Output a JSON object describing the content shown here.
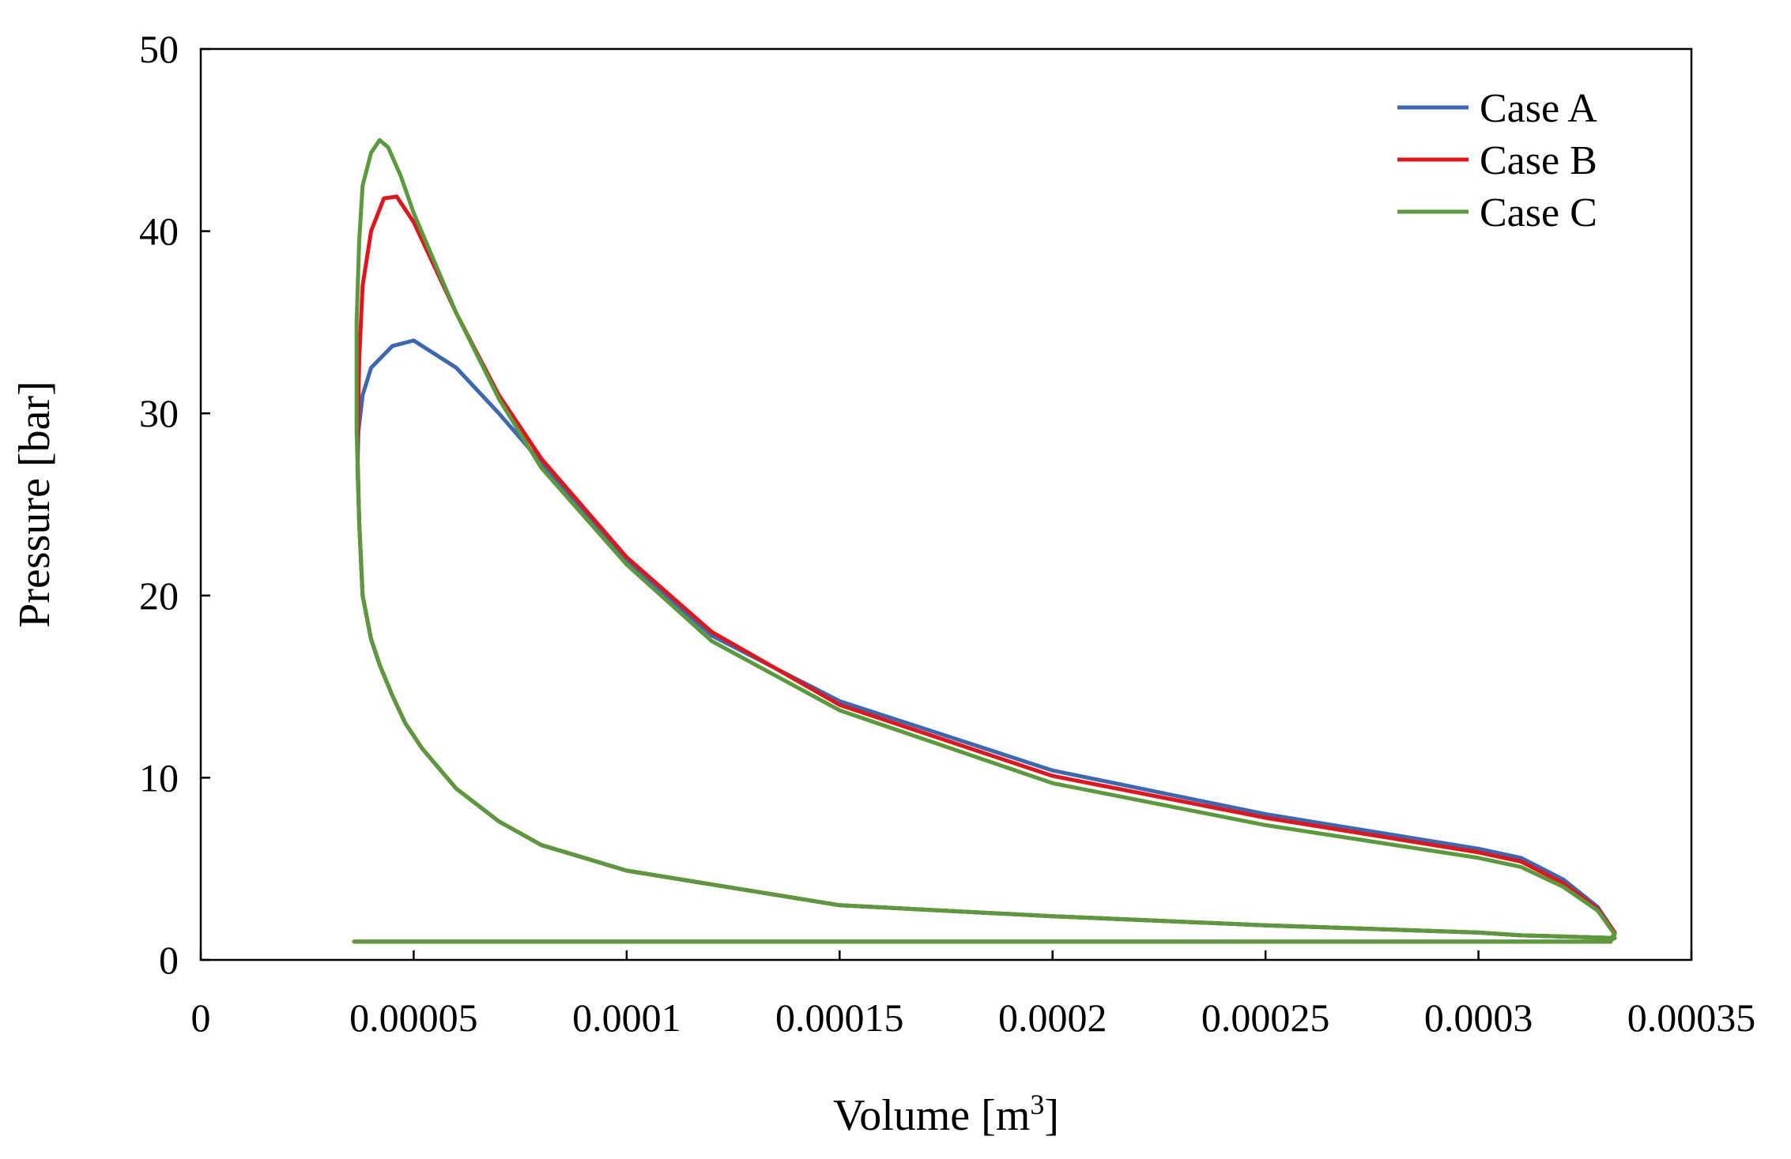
{
  "chart_data": {
    "type": "line",
    "title": "",
    "xlabel": "Volume [m",
    "xlabel_superscript": "3",
    "xlabel_suffix": "]",
    "ylabel": "Pressure [bar]",
    "xlim": [
      0,
      0.00035
    ],
    "ylim": [
      0,
      50
    ],
    "xticks": [
      0,
      5e-05,
      0.0001,
      0.00015,
      0.0002,
      0.00025,
      0.0003,
      0.00035
    ],
    "xtick_labels": [
      "0",
      "0.00005",
      "0.0001",
      "0.00015",
      "0.0002",
      "0.00025",
      "0.0003",
      "0.00035"
    ],
    "yticks": [
      0,
      10,
      20,
      30,
      40,
      50
    ],
    "ytick_labels": [
      "0",
      "10",
      "20",
      "30",
      "40",
      "50"
    ],
    "grid": false,
    "legend_position": "top-right",
    "series": [
      {
        "name": "Case A",
        "color": "#3e67b1",
        "x": [
          3.62e-05,
          6e-05,
          0.0001,
          0.00015,
          0.0002,
          0.00025,
          0.0003,
          0.00033,
          0.000332,
          0.00031,
          0.0003,
          0.00025,
          0.0002,
          0.00015,
          0.0001,
          8e-05,
          7e-05,
          6e-05,
          5.2e-05,
          4.8e-05,
          4.5e-05,
          4.2e-05,
          4e-05,
          3.8e-05,
          3.72e-05,
          3.68e-05,
          3.7e-05,
          3.8e-05,
          4e-05,
          4.5e-05,
          5e-05,
          6e-05,
          7e-05,
          8e-05,
          0.0001,
          0.00012,
          0.00015,
          0.0002,
          0.00025,
          0.0003,
          0.00031,
          0.00032,
          0.000328,
          0.000332,
          0.000331,
          0.0003,
          0.00025,
          0.0002,
          0.00015,
          0.0001,
          5e-05,
          3.6e-05
        ],
        "y": [
          1.0,
          1.0,
          1.0,
          1.0,
          1.0,
          1.0,
          1.0,
          1.0,
          1.2,
          1.35,
          1.5,
          1.9,
          2.4,
          3.0,
          4.9,
          6.3,
          7.6,
          9.4,
          11.6,
          13.0,
          14.5,
          16.2,
          17.6,
          20.0,
          24.0,
          27.0,
          29.0,
          31.0,
          32.5,
          33.7,
          34.0,
          32.5,
          30.0,
          27.3,
          21.9,
          17.8,
          14.2,
          10.4,
          8.0,
          6.1,
          5.6,
          4.4,
          2.9,
          1.5,
          1.0,
          1.0,
          1.0,
          1.0,
          1.0,
          1.0,
          1.0,
          1.0
        ]
      },
      {
        "name": "Case B",
        "color": "#e0161c",
        "x": [
          3.62e-05,
          6e-05,
          0.0001,
          0.00015,
          0.0002,
          0.00025,
          0.0003,
          0.00033,
          0.000332,
          0.00031,
          0.0003,
          0.00025,
          0.0002,
          0.00015,
          0.0001,
          8e-05,
          7e-05,
          6e-05,
          5.2e-05,
          4.8e-05,
          4.5e-05,
          4.2e-05,
          4e-05,
          3.8e-05,
          3.72e-05,
          3.68e-05,
          3.72e-05,
          3.8e-05,
          4e-05,
          4.3e-05,
          4.6e-05,
          5e-05,
          6e-05,
          7e-05,
          8e-05,
          0.0001,
          0.00012,
          0.00015,
          0.0002,
          0.00025,
          0.0003,
          0.00031,
          0.00032,
          0.000328,
          0.000332,
          0.000331,
          0.0003,
          0.00025,
          0.0002,
          0.00015,
          0.0001,
          5e-05,
          3.6e-05
        ],
        "y": [
          1.0,
          1.0,
          1.0,
          1.0,
          1.0,
          1.0,
          1.0,
          1.0,
          1.2,
          1.35,
          1.5,
          1.9,
          2.4,
          3.0,
          4.9,
          6.3,
          7.6,
          9.4,
          11.6,
          13.0,
          14.5,
          16.2,
          17.6,
          20.0,
          24.0,
          28.0,
          33.0,
          37.0,
          40.0,
          41.8,
          41.9,
          40.5,
          35.5,
          31.0,
          27.5,
          22.1,
          18.0,
          14.0,
          10.1,
          7.8,
          5.9,
          5.4,
          4.2,
          2.8,
          1.5,
          1.0,
          1.0,
          1.0,
          1.0,
          1.0,
          1.0,
          1.0,
          1.0
        ]
      },
      {
        "name": "Case C",
        "color": "#5a9a3c",
        "x": [
          3.62e-05,
          6e-05,
          0.0001,
          0.00015,
          0.0002,
          0.00025,
          0.0003,
          0.00033,
          0.000332,
          0.00031,
          0.0003,
          0.00025,
          0.0002,
          0.00015,
          0.0001,
          8e-05,
          7e-05,
          6e-05,
          5.2e-05,
          4.8e-05,
          4.5e-05,
          4.2e-05,
          4e-05,
          3.8e-05,
          3.72e-05,
          3.66e-05,
          3.66e-05,
          3.72e-05,
          3.8e-05,
          4e-05,
          4.2e-05,
          4.4e-05,
          4.7e-05,
          5e-05,
          6e-05,
          7e-05,
          8e-05,
          0.0001,
          0.00012,
          0.00015,
          0.0002,
          0.00025,
          0.0003,
          0.00031,
          0.00032,
          0.000328,
          0.000332,
          0.000331,
          0.0003,
          0.00025,
          0.0002,
          0.00015,
          0.0001,
          5e-05,
          3.6e-05
        ],
        "y": [
          1.0,
          1.0,
          1.0,
          1.0,
          1.0,
          1.0,
          1.0,
          1.0,
          1.2,
          1.35,
          1.5,
          1.9,
          2.4,
          3.0,
          4.9,
          6.3,
          7.6,
          9.4,
          11.6,
          13.0,
          14.5,
          16.2,
          17.6,
          20.0,
          24.0,
          29.0,
          35.0,
          39.5,
          42.5,
          44.3,
          45.0,
          44.6,
          43.0,
          41.0,
          35.5,
          30.8,
          27.0,
          21.7,
          17.5,
          13.7,
          9.7,
          7.4,
          5.6,
          5.1,
          4.0,
          2.7,
          1.4,
          1.0,
          1.0,
          1.0,
          1.0,
          1.0,
          1.0,
          1.0,
          1.0
        ]
      }
    ]
  }
}
